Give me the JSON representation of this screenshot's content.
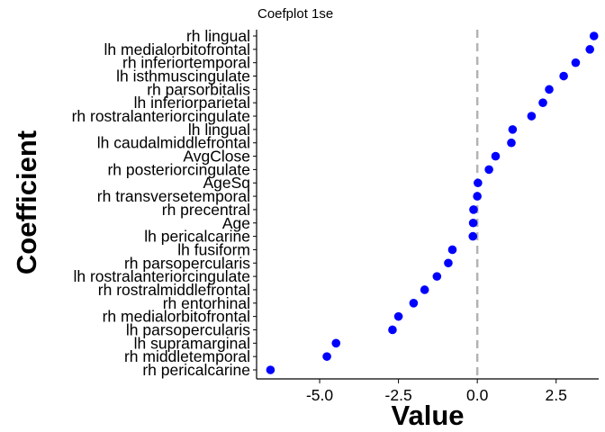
{
  "chart_data": {
    "type": "scatter",
    "title": "Coefplot 1se",
    "xlabel": "Value",
    "ylabel": "Coefficient",
    "xlim": [
      -7.0,
      3.85
    ],
    "xticks": [
      -5.0,
      -2.5,
      0.0,
      2.5
    ],
    "xtick_labels": [
      "-5.0",
      "-2.5",
      "0.0",
      "2.5"
    ],
    "reference_line": {
      "x": 0,
      "style": "dashed",
      "color": "#b3b3b3"
    },
    "point_color": "#0000ff",
    "grid": false,
    "points": [
      {
        "label": "rh lingual",
        "value": 3.7
      },
      {
        "label": "lh medialorbitofrontal",
        "value": 3.57
      },
      {
        "label": "rh inferiortemporal",
        "value": 3.12
      },
      {
        "label": "lh isthmuscingulate",
        "value": 2.74
      },
      {
        "label": "rh parsorbitalis",
        "value": 2.28
      },
      {
        "label": "lh inferiorparietal",
        "value": 2.08
      },
      {
        "label": "rh rostralanteriorcingulate",
        "value": 1.72
      },
      {
        "label": "lh lingual",
        "value": 1.12
      },
      {
        "label": "lh caudalmiddlefrontal",
        "value": 1.08
      },
      {
        "label": "AvgClose",
        "value": 0.58
      },
      {
        "label": "rh posteriorcingulate",
        "value": 0.37
      },
      {
        "label": "AgeSq",
        "value": 0.02
      },
      {
        "label": "rh transversetemporal",
        "value": 0.0
      },
      {
        "label": "rh precentral",
        "value": -0.12
      },
      {
        "label": "Age",
        "value": -0.13
      },
      {
        "label": "lh pericalcarine",
        "value": -0.14
      },
      {
        "label": "lh fusiform",
        "value": -0.79
      },
      {
        "label": "rh parsopercularis",
        "value": -0.92
      },
      {
        "label": "lh rostralanteriorcingulate",
        "value": -1.28
      },
      {
        "label": "rh rostralmiddlefrontal",
        "value": -1.67
      },
      {
        "label": "rh entorhinal",
        "value": -2.02
      },
      {
        "label": "rh medialorbitofrontal",
        "value": -2.5
      },
      {
        "label": "lh parsopercularis",
        "value": -2.69
      },
      {
        "label": "lh supramarginal",
        "value": -4.48
      },
      {
        "label": "rh middletemporal",
        "value": -4.77
      },
      {
        "label": "rh pericalcarine",
        "value": -6.56
      }
    ]
  }
}
